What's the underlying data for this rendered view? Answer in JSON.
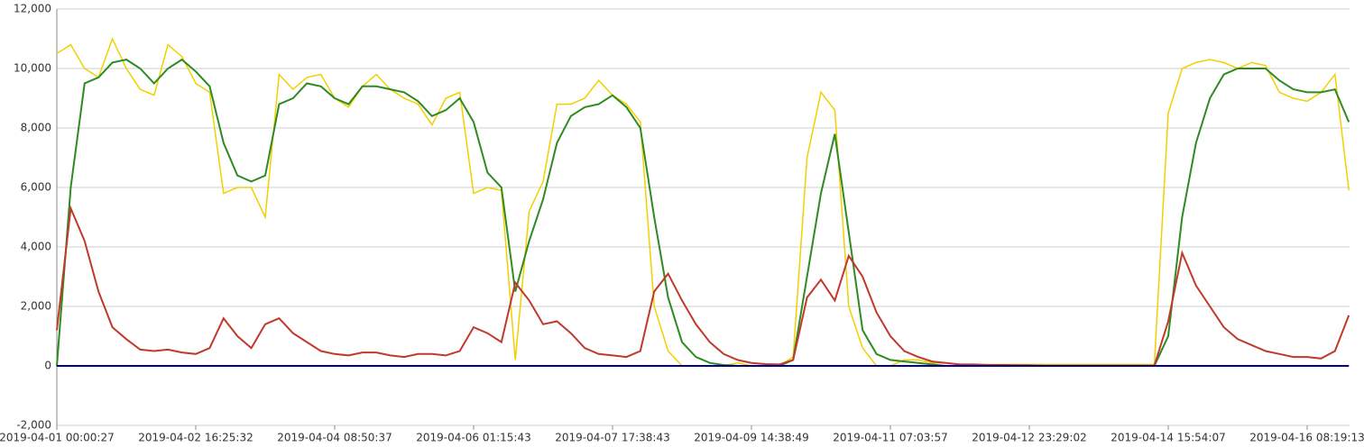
{
  "chart_data": {
    "type": "line",
    "categories": [
      "2019-04-01 00:00:27",
      null,
      null,
      null,
      null,
      null,
      null,
      null,
      null,
      null,
      "2019-04-02 16:25:32",
      null,
      null,
      null,
      null,
      null,
      null,
      null,
      null,
      null,
      "2019-04-04 08:50:37",
      null,
      null,
      null,
      null,
      null,
      null,
      null,
      null,
      null,
      "2019-04-06 01:15:43",
      null,
      null,
      null,
      null,
      null,
      null,
      null,
      null,
      null,
      "2019-04-07 17:38:43",
      null,
      null,
      null,
      null,
      null,
      null,
      null,
      null,
      null,
      "2019-04-09 14:38:49",
      null,
      null,
      null,
      null,
      null,
      null,
      null,
      null,
      null,
      "2019-04-11 07:03:57",
      null,
      null,
      null,
      null,
      null,
      null,
      null,
      null,
      null,
      "2019-04-12 23:29:02",
      null,
      null,
      null,
      null,
      null,
      null,
      null,
      null,
      null,
      "2019-04-14 15:54:07",
      null,
      null,
      null,
      null,
      null,
      null,
      null,
      null,
      null,
      "2019-04-16 08:19:13",
      null,
      null,
      null
    ],
    "series": [
      {
        "color": "#f2d000",
        "values": [
          10500,
          10800,
          10000,
          9700,
          11000,
          10000,
          9300,
          9100,
          10800,
          10400,
          9500,
          9200,
          5800,
          6000,
          6000,
          5000,
          9800,
          9300,
          9700,
          9800,
          9000,
          8700,
          9400,
          9800,
          9300,
          9000,
          8800,
          8100,
          9000,
          9200,
          5800,
          6000,
          5900,
          200,
          5200,
          6200,
          8800,
          8800,
          9000,
          9600,
          9100,
          8800,
          8200,
          2000,
          500,
          0,
          0,
          0,
          0,
          100,
          0,
          0,
          0,
          300,
          7000,
          9200,
          8600,
          2000,
          600,
          0,
          0,
          200,
          200,
          100,
          100,
          50,
          50,
          50,
          50,
          50,
          50,
          50,
          50,
          50,
          50,
          50,
          50,
          50,
          50,
          50,
          8500,
          10000,
          10200,
          10300,
          10200,
          10000,
          10200,
          10100,
          9200,
          9000,
          8900,
          9200,
          9800,
          5900
        ]
      },
      {
        "color": "#2e8b22",
        "values": [
          0,
          6000,
          9500,
          9700,
          10200,
          10300,
          10000,
          9500,
          10000,
          10300,
          9900,
          9400,
          7500,
          6400,
          6200,
          6400,
          8800,
          9000,
          9500,
          9400,
          9000,
          8800,
          9400,
          9400,
          9300,
          9200,
          8900,
          8400,
          8600,
          9000,
          8200,
          6500,
          6000,
          2500,
          4200,
          5600,
          7500,
          8400,
          8700,
          8800,
          9100,
          8700,
          8000,
          5000,
          2300,
          800,
          300,
          100,
          30,
          0,
          0,
          0,
          0,
          200,
          3000,
          5800,
          7800,
          4500,
          1200,
          400,
          200,
          150,
          100,
          50,
          0,
          0,
          0,
          0,
          0,
          0,
          0,
          0,
          0,
          0,
          0,
          0,
          0,
          0,
          0,
          0,
          1000,
          5000,
          7500,
          9000,
          9800,
          10000,
          10000,
          10000,
          9600,
          9300,
          9200,
          9200,
          9300,
          8200
        ]
      },
      {
        "color": "#c0392b",
        "values": [
          1200,
          5300,
          4200,
          2500,
          1300,
          900,
          550,
          500,
          550,
          450,
          400,
          600,
          1600,
          1000,
          600,
          1400,
          1600,
          1100,
          800,
          500,
          400,
          350,
          450,
          450,
          350,
          300,
          400,
          400,
          350,
          500,
          1300,
          1100,
          800,
          2800,
          2200,
          1400,
          1500,
          1100,
          600,
          400,
          350,
          300,
          500,
          2500,
          3100,
          2200,
          1400,
          800,
          400,
          200,
          100,
          60,
          50,
          200,
          2300,
          2900,
          2200,
          3700,
          3000,
          1800,
          1000,
          500,
          300,
          150,
          100,
          50,
          50,
          30,
          30,
          20,
          20,
          10,
          10,
          10,
          10,
          10,
          10,
          10,
          10,
          10,
          1500,
          3800,
          2700,
          2000,
          1300,
          900,
          700,
          500,
          400,
          300,
          300,
          250,
          500,
          1700
        ]
      },
      {
        "color": "#00008b",
        "values": [
          0,
          0,
          0,
          0,
          0,
          0,
          0,
          0,
          0,
          0,
          0,
          0,
          0,
          0,
          0,
          0,
          0,
          0,
          0,
          0,
          0,
          0,
          0,
          0,
          0,
          0,
          0,
          0,
          0,
          0,
          0,
          0,
          0,
          0,
          0,
          0,
          0,
          0,
          0,
          0,
          0,
          0,
          0,
          0,
          0,
          0,
          0,
          0,
          0,
          0,
          0,
          0,
          0,
          0,
          0,
          0,
          0,
          0,
          0,
          0,
          0,
          0,
          0,
          0,
          0,
          0,
          0,
          0,
          0,
          0,
          0,
          0,
          0,
          0,
          0,
          0,
          0,
          0,
          0,
          0,
          0,
          0,
          0,
          0,
          0,
          0,
          0,
          0,
          0,
          0,
          0,
          0,
          0,
          0
        ]
      }
    ],
    "ylim": [
      -2000,
      12000
    ],
    "yticks": [
      {
        "value": -2000,
        "label": "-2,000"
      },
      0,
      {
        "value": 2000,
        "label": "2,000"
      },
      {
        "value": 4000,
        "label": "4,000"
      },
      {
        "value": 6000,
        "label": "6,000"
      },
      {
        "value": 8000,
        "label": "8,000"
      },
      {
        "value": 10000,
        "label": "10,000"
      },
      {
        "value": 12000,
        "label": "12,000"
      }
    ],
    "grid": true
  }
}
